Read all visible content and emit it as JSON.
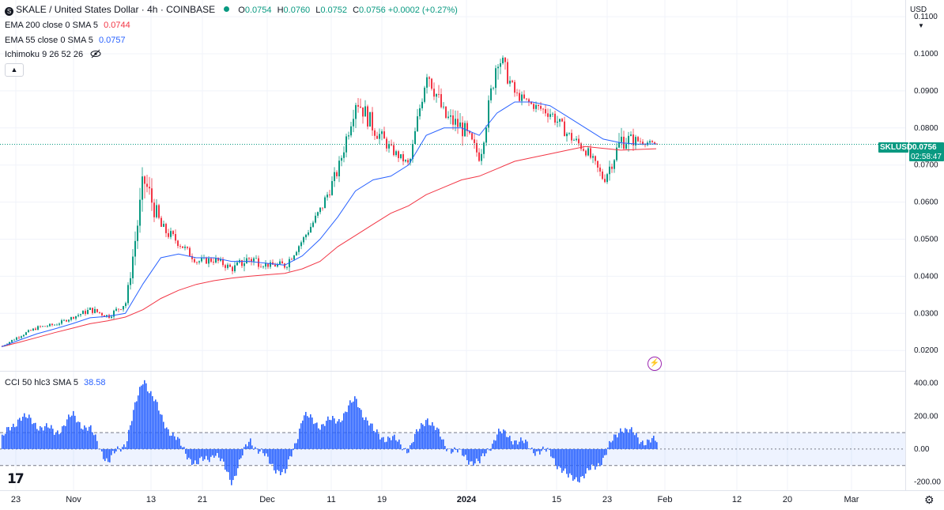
{
  "header": {
    "symbol_title": "SKALE / United States Dollar · 4h · COINBASE",
    "ohlc": {
      "o_label": "O",
      "o": "0.0754",
      "h_label": "H",
      "h": "0.0760",
      "l_label": "L",
      "l": "0.0752",
      "c_label": "C",
      "c": "0.0756",
      "change": "+0.0002 (+0.27%)"
    }
  },
  "indicators": {
    "ema200": {
      "label": "EMA 200 close 0 SMA 5",
      "value": "0.0744",
      "color": "#f23645"
    },
    "ema55": {
      "label": "EMA 55 close 0 SMA 5",
      "value": "0.0757",
      "color": "#2962ff"
    },
    "ichimoku": {
      "label": "Ichimoku 9 26 52 26",
      "icon": "eye-crossed-icon"
    },
    "cci": {
      "label": "CCI 50 hlc3 SMA 5",
      "value": "38.58",
      "color": "#2962ff"
    }
  },
  "controls": {
    "collapse_icon": "chevron-up-icon",
    "currency": "USD",
    "currency_icon": "chevron-down-icon",
    "settings_icon": "gear-icon",
    "logo_text": "17"
  },
  "price_tag": {
    "symbol": "SKLUSD",
    "price": "0.0756",
    "countdown": "02:58:47",
    "color": "#089981"
  },
  "chart_data": [
    {
      "type": "candlestick",
      "title": "SKALE / United States Dollar · 4h · COINBASE",
      "x_tick_labels": [
        "23",
        "Nov",
        "13",
        "21",
        "Dec",
        "11",
        "19",
        "2024",
        "15",
        "23",
        "Feb",
        "12",
        "20",
        "Mar"
      ],
      "y_tick_labels": [
        "0.1100",
        "0.1000",
        "0.0900",
        "0.0800",
        "0.0700",
        "0.0600",
        "0.0500",
        "0.0400",
        "0.0300",
        "0.0200"
      ],
      "ylim": [
        0.0145,
        0.1145
      ],
      "x": [
        "Oct 23",
        "Oct 28",
        "Nov 2",
        "Nov 7",
        "Nov 12",
        "Nov 15",
        "Nov 18",
        "Nov 20",
        "Nov 21",
        "Nov 23",
        "Nov 26",
        "Nov 30",
        "Dec 4",
        "Dec 8",
        "Dec 12",
        "Dec 16",
        "Dec 19",
        "Dec 22",
        "Dec 25",
        "Dec 27",
        "Dec 28",
        "Dec 30",
        "Jan 1",
        "Jan 2",
        "Jan 4",
        "Jan 6",
        "Jan 8",
        "Jan 10",
        "Jan 11",
        "Jan 13",
        "Jan 15",
        "Jan 17",
        "Jan 19",
        "Jan 21",
        "Jan 23",
        "Jan 25",
        "Jan 27",
        "Jan 29"
      ],
      "series": [
        {
          "name": "SKLUSD",
          "close": [
            0.0212,
            0.024,
            0.0262,
            0.027,
            0.029,
            0.031,
            0.0292,
            0.033,
            0.066,
            0.053,
            0.049,
            0.044,
            0.0445,
            0.042,
            0.045,
            0.043,
            0.043,
            0.05,
            0.058,
            0.069,
            0.088,
            0.08,
            0.074,
            0.07,
            0.096,
            0.083,
            0.08,
            0.072,
            0.1,
            0.089,
            0.086,
            0.084,
            0.078,
            0.074,
            0.066,
            0.077,
            0.0765,
            0.0756
          ],
          "high": [
            0.022,
            0.025,
            0.027,
            0.028,
            0.03,
            0.033,
            0.03,
            0.035,
            0.069,
            0.056,
            0.05,
            0.046,
            0.047,
            0.044,
            0.047,
            0.045,
            0.045,
            0.052,
            0.061,
            0.072,
            0.092,
            0.083,
            0.076,
            0.072,
            0.105,
            0.087,
            0.082,
            0.076,
            0.107,
            0.091,
            0.088,
            0.086,
            0.08,
            0.076,
            0.069,
            0.083,
            0.079,
            0.076
          ],
          "low": [
            0.0205,
            0.023,
            0.025,
            0.026,
            0.028,
            0.029,
            0.027,
            0.03,
            0.05,
            0.048,
            0.044,
            0.042,
            0.042,
            0.04,
            0.037,
            0.042,
            0.039,
            0.048,
            0.054,
            0.064,
            0.08,
            0.072,
            0.07,
            0.068,
            0.09,
            0.077,
            0.07,
            0.069,
            0.092,
            0.085,
            0.083,
            0.078,
            0.073,
            0.069,
            0.063,
            0.07,
            0.074,
            0.0752
          ]
        },
        {
          "name": "EMA 200 close 0 SMA 5",
          "values": [
            0.021,
            0.0222,
            0.0235,
            0.0248,
            0.026,
            0.0272,
            0.028,
            0.029,
            0.031,
            0.034,
            0.0362,
            0.0378,
            0.0388,
            0.0395,
            0.04,
            0.0404,
            0.0408,
            0.042,
            0.044,
            0.048,
            0.051,
            0.054,
            0.057,
            0.059,
            0.062,
            0.064,
            0.066,
            0.067,
            0.069,
            0.071,
            0.072,
            0.073,
            0.074,
            0.075,
            0.0745,
            0.074,
            0.0742,
            0.0744
          ]
        },
        {
          "name": "EMA 55 close 0 SMA 5",
          "values": [
            0.021,
            0.0228,
            0.0245,
            0.0258,
            0.0272,
            0.0288,
            0.0292,
            0.03,
            0.038,
            0.045,
            0.046,
            0.045,
            0.045,
            0.044,
            0.044,
            0.0435,
            0.043,
            0.0455,
            0.05,
            0.056,
            0.063,
            0.066,
            0.067,
            0.07,
            0.078,
            0.08,
            0.08,
            0.078,
            0.084,
            0.087,
            0.087,
            0.086,
            0.083,
            0.08,
            0.077,
            0.076,
            0.0756,
            0.0757
          ]
        }
      ]
    },
    {
      "type": "area",
      "title": "CCI 50 hlc3 SMA 5",
      "y_tick_labels": [
        "400.00",
        "200.00",
        "0.00",
        "-200.00"
      ],
      "ylim": [
        -250,
        470
      ],
      "bands": [
        100,
        -100
      ],
      "x": [
        "Oct 23",
        "Oct 28",
        "Nov 2",
        "Nov 7",
        "Nov 12",
        "Nov 15",
        "Nov 18",
        "Nov 20",
        "Nov 21",
        "Nov 23",
        "Nov 26",
        "Nov 30",
        "Dec 4",
        "Dec 8",
        "Dec 12",
        "Dec 16",
        "Dec 19",
        "Dec 22",
        "Dec 25",
        "Dec 27",
        "Dec 28",
        "Dec 30",
        "Jan 1",
        "Jan 2",
        "Jan 4",
        "Jan 6",
        "Jan 8",
        "Jan 10",
        "Jan 11",
        "Jan 13",
        "Jan 15",
        "Jan 17",
        "Jan 19",
        "Jan 21",
        "Jan 23",
        "Jan 25",
        "Jan 27",
        "Jan 29"
      ],
      "values": [
        60,
        200,
        150,
        100,
        200,
        110,
        -80,
        50,
        440,
        190,
        30,
        -100,
        -20,
        -190,
        60,
        -70,
        -160,
        200,
        150,
        180,
        300,
        100,
        60,
        0,
        200,
        30,
        -40,
        -90,
        100,
        60,
        0,
        -30,
        -180,
        -160,
        -50,
        140,
        60,
        38.58
      ]
    }
  ]
}
